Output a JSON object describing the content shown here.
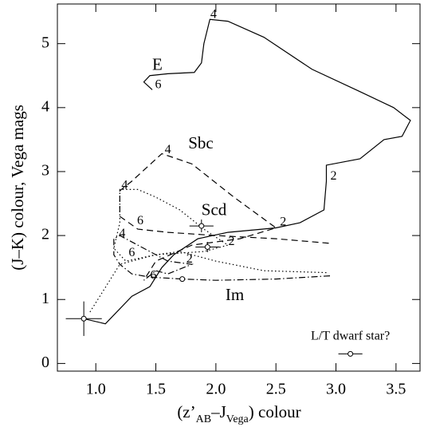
{
  "chart_data": {
    "type": "line",
    "xlabel": [
      {
        "text": "(z’"
      },
      {
        "text": "AB",
        "sub": true
      },
      {
        "text": "–J"
      },
      {
        "text": "Vega",
        "sub": true
      },
      {
        "text": ") colour"
      }
    ],
    "ylabel": "(J–K) colour, Vega mags",
    "xlim": [
      0.68,
      3.7
    ],
    "ylim": [
      -0.12,
      5.62
    ],
    "xticks": [
      {
        "value": 1,
        "label": "1.0"
      },
      {
        "value": 1.5,
        "label": "1.5"
      },
      {
        "value": 2,
        "label": "2.0"
      },
      {
        "value": 2.5,
        "label": "2.5"
      },
      {
        "value": 3,
        "label": "3.0"
      },
      {
        "value": 3.5,
        "label": "3.5"
      }
    ],
    "yticks": [
      0,
      1,
      2,
      3,
      4,
      5
    ],
    "grid": false,
    "series": [
      {
        "name": "E",
        "style": "solid",
        "color": "#000",
        "label_at": [
          1.47,
          4.65
        ],
        "x": [
          0.9,
          1.08,
          1.3,
          1.45,
          1.55,
          1.65,
          1.85,
          2.1,
          2.5,
          2.7,
          2.9,
          2.92,
          2.92,
          3.2,
          3.4,
          3.55,
          3.62,
          3.48,
          3.2,
          2.8,
          2.4,
          2.1,
          1.95,
          1.9,
          1.88,
          1.82,
          1.6,
          1.45,
          1.4,
          1.47
        ],
        "y": [
          0.7,
          0.62,
          1.05,
          1.2,
          1.5,
          1.7,
          1.95,
          2.05,
          2.12,
          2.2,
          2.4,
          2.85,
          3.1,
          3.2,
          3.5,
          3.55,
          3.8,
          4.0,
          4.25,
          4.6,
          5.1,
          5.35,
          5.38,
          5.0,
          4.7,
          4.55,
          4.53,
          4.5,
          4.4,
          4.28
        ]
      },
      {
        "name": "Sbc",
        "style": "dashed",
        "color": "#000",
        "label_at": [
          1.77,
          3.42
        ],
        "x": [
          2.94,
          2.5,
          2.0,
          1.6,
          1.35,
          1.2,
          1.2,
          1.3,
          1.55,
          1.8,
          2.15,
          2.5,
          2.2,
          1.8,
          1.5,
          1.4
        ],
        "y": [
          1.88,
          1.95,
          2.0,
          2.05,
          2.1,
          2.3,
          2.7,
          2.85,
          3.28,
          3.12,
          2.6,
          2.12,
          1.95,
          1.85,
          1.6,
          1.3
        ]
      },
      {
        "name": "Scd",
        "style": "dotted",
        "color": "#000",
        "label_at": [
          1.88,
          2.38
        ],
        "x": [
          2.92,
          2.4,
          2.0,
          1.7,
          1.5,
          1.25,
          1.15,
          1.2,
          1.2,
          1.35,
          1.5,
          1.7,
          1.9,
          2.1,
          1.9,
          1.5,
          1.2,
          1.05,
          0.95
        ],
        "y": [
          1.42,
          1.45,
          1.6,
          1.75,
          1.7,
          1.6,
          1.8,
          2.2,
          2.72,
          2.72,
          2.6,
          2.4,
          2.1,
          1.85,
          1.75,
          1.7,
          1.55,
          1.1,
          0.8
        ]
      },
      {
        "name": "Im",
        "style": "dashdot",
        "color": "#000",
        "label_at": [
          2.08,
          1.05
        ],
        "x": [
          2.95,
          2.5,
          2.0,
          1.72,
          1.45,
          1.3,
          1.2,
          1.15,
          1.15,
          1.2,
          1.4,
          1.6,
          1.8,
          1.6,
          1.5,
          1.4
        ],
        "y": [
          1.37,
          1.32,
          1.3,
          1.32,
          1.35,
          1.4,
          1.55,
          1.7,
          1.95,
          2.0,
          1.8,
          1.6,
          1.55,
          1.4,
          1.45,
          1.3
        ]
      }
    ],
    "points": {
      "x": [
        0.9,
        1.88,
        1.93,
        1.72,
        3.12
      ],
      "y": [
        0.7,
        2.15,
        1.82,
        1.32,
        0.15
      ],
      "xerr": [
        0.15,
        0.1,
        0.1,
        0.02,
        0.1
      ],
      "yerr": [
        0.27,
        0.1,
        0.08,
        0.03,
        0.03
      ]
    },
    "annotations": [
      {
        "text": "4",
        "x": 1.98,
        "y": 5.45
      },
      {
        "text": "6",
        "x": 1.52,
        "y": 4.35
      },
      {
        "text": "2",
        "x": 2.98,
        "y": 2.92
      },
      {
        "text": "4",
        "x": 1.6,
        "y": 3.33
      },
      {
        "text": "4",
        "x": 1.24,
        "y": 2.78
      },
      {
        "text": "6",
        "x": 1.37,
        "y": 2.22
      },
      {
        "text": "2",
        "x": 2.56,
        "y": 2.2
      },
      {
        "text": "4",
        "x": 1.22,
        "y": 2.02
      },
      {
        "text": "6",
        "x": 1.3,
        "y": 1.72
      },
      {
        "text": "2",
        "x": 1.78,
        "y": 1.62
      },
      {
        "text": "6",
        "x": 1.48,
        "y": 1.37
      },
      {
        "text": "2",
        "x": 2.13,
        "y": 1.9
      },
      {
        "text": "L/T dwarf star?",
        "x": 3.12,
        "y": 0.42
      }
    ]
  }
}
